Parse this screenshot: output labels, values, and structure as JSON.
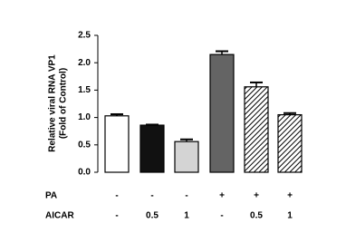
{
  "chart_data": {
    "type": "bar",
    "ylabel": [
      "Relative viral RNA VP1",
      "(Fold of Control)"
    ],
    "categories": [
      null,
      null,
      null,
      null,
      null,
      null
    ],
    "values": [
      1.03,
      0.86,
      0.56,
      2.15,
      1.56,
      1.05
    ],
    "errors": [
      0.03,
      0.01,
      0.04,
      0.06,
      0.08,
      0.03
    ],
    "colors": [
      "#ffffff",
      "#111111",
      "#d4d4d4",
      "#646464",
      "#000000",
      "#000000"
    ],
    "hatch": [
      false,
      false,
      false,
      false,
      true,
      true
    ],
    "ylim": [
      0,
      2.5
    ],
    "yticks": [
      {
        "value": 0,
        "label": "0.0"
      },
      0.5,
      {
        "value": 1,
        "label": "1.0"
      },
      1.5,
      {
        "value": 2,
        "label": "2.0"
      },
      2.5
    ],
    "conditions": [
      {
        "name": "PA",
        "labels": [
          "-",
          "-",
          "-",
          "+",
          "+",
          "+"
        ]
      },
      {
        "name": "AICAR",
        "labels": [
          "-",
          "0.5",
          "1",
          "-",
          "0.5",
          "1"
        ]
      }
    ]
  }
}
